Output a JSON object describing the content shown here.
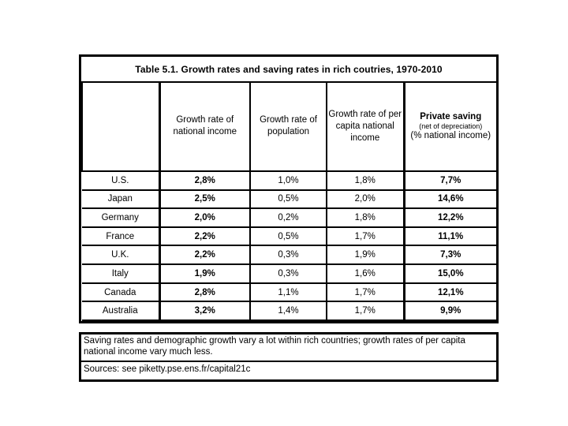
{
  "title": "Table 5.1. Growth rates and saving rates in rich coutries, 1970-2010",
  "header": {
    "col1": "Growth rate of national income",
    "col2": "Growth rate of population",
    "col3": "Growth rate of per capita national income",
    "col4_main": "Private saving",
    "col4_sub": "(net of depreciation)",
    "col4_unit": "(% national income)"
  },
  "rows": [
    {
      "country": "U.S.",
      "values": [
        "2,8%",
        "1,0%",
        "1,8%",
        "7,7%"
      ]
    },
    {
      "country": "Japan",
      "values": [
        "2,5%",
        "0,5%",
        "2,0%",
        "14,6%"
      ]
    },
    {
      "country": "Germany",
      "values": [
        "2,0%",
        "0,2%",
        "1,8%",
        "12,2%"
      ]
    },
    {
      "country": "France",
      "values": [
        "2,2%",
        "0,5%",
        "1,7%",
        "11,1%"
      ]
    },
    {
      "country": "U.K.",
      "values": [
        "2,2%",
        "0,3%",
        "1,9%",
        "7,3%"
      ]
    },
    {
      "country": "Italy",
      "values": [
        "1,9%",
        "0,3%",
        "1,6%",
        "15,0%"
      ]
    },
    {
      "country": "Canada",
      "values": [
        "2,8%",
        "1,1%",
        "1,7%",
        "12,1%"
      ]
    },
    {
      "country": "Australia",
      "values": [
        "3,2%",
        "1,4%",
        "1,7%",
        "9,9%"
      ]
    }
  ],
  "notes": {
    "summary": "Saving rates and demographic growth vary a lot within rich countries; growth rates of per capita national income vary much less.",
    "sources": "Sources: see piketty.pse.ens.fr/capital21c"
  },
  "colors": {
    "background": "#ffffff",
    "border": "#000000",
    "text": "#000000"
  },
  "chart_data": {
    "type": "table",
    "title": "Table 5.1. Growth rates and saving rates in rich coutries, 1970-2010",
    "columns": [
      "",
      "Growth rate of national income",
      "Growth rate of population",
      "Growth rate of per capita national income",
      "Private saving (net of depreciation) (% national income)"
    ],
    "rows": [
      [
        "U.S.",
        "2,8%",
        "1,0%",
        "1,8%",
        "7,7%"
      ],
      [
        "Japan",
        "2,5%",
        "0,5%",
        "2,0%",
        "14,6%"
      ],
      [
        "Germany",
        "2,0%",
        "0,2%",
        "1,8%",
        "12,2%"
      ],
      [
        "France",
        "2,2%",
        "0,5%",
        "1,7%",
        "11,1%"
      ],
      [
        "U.K.",
        "2,2%",
        "0,3%",
        "1,9%",
        "7,3%"
      ],
      [
        "Italy",
        "1,9%",
        "0,3%",
        "1,6%",
        "15,0%"
      ],
      [
        "Canada",
        "2,8%",
        "1,1%",
        "1,7%",
        "12,1%"
      ],
      [
        "Australia",
        "3,2%",
        "1,4%",
        "1,7%",
        "9,9%"
      ]
    ]
  }
}
